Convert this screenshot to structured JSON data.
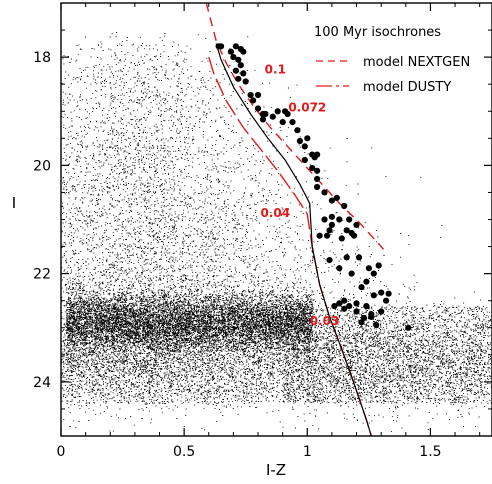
{
  "chart_data": {
    "type": "scatter",
    "xlabel": "I-Z",
    "ylabel": "I",
    "xlim": [
      0,
      1.75
    ],
    "ylim": [
      25.0,
      17.0
    ],
    "y_inverted": true,
    "x_ticks": [
      0,
      0.5,
      1,
      1.5
    ],
    "x_tick_labels": [
      "0",
      "0.5",
      "1",
      "1.5"
    ],
    "y_ticks": [
      18,
      20,
      22,
      24
    ],
    "y_tick_labels": [
      "18",
      "20",
      "22",
      "24"
    ],
    "legend": {
      "title": "100 Myr isochrones",
      "placement": "top-right",
      "entries": [
        {
          "label": "model NEXTGEN",
          "color": "#e31a1c",
          "style": "dashed"
        },
        {
          "label": "model DUSTY",
          "color": "#e31a1c",
          "style": "long-dash"
        }
      ]
    },
    "colors": {
      "isochrone": "#e31a1c",
      "mass_label": "#e31a1c",
      "points": "#000000",
      "field": "#000000"
    },
    "series": [
      {
        "name": "model NEXTGEN",
        "type": "line",
        "style": "dashed",
        "color": "#e31a1c",
        "x": [
          0.59,
          0.61,
          0.63,
          0.67,
          0.72,
          0.78,
          0.85,
          0.93,
          1.0,
          1.06,
          1.13,
          1.21,
          1.29,
          1.31
        ],
        "y": [
          17.0,
          17.35,
          17.7,
          18.1,
          18.5,
          18.9,
          19.3,
          19.7,
          20.05,
          20.35,
          20.7,
          21.05,
          21.45,
          21.55
        ]
      },
      {
        "name": "model DUSTY",
        "type": "line",
        "style": "long-dash",
        "color": "#e31a1c",
        "x": [
          0.6,
          0.62,
          0.67,
          0.74,
          0.81,
          0.88,
          0.95,
          1.0,
          1.02,
          1.05,
          1.09,
          1.14,
          1.18,
          1.21,
          1.24,
          1.26
        ],
        "y": [
          18.0,
          18.3,
          18.8,
          19.3,
          19.7,
          20.1,
          20.55,
          20.9,
          21.5,
          22.2,
          22.8,
          23.4,
          23.9,
          24.3,
          24.7,
          25.0
        ]
      },
      {
        "name": "",
        "type": "line",
        "style": "solid",
        "color": "#000000",
        "x": [
          0.63,
          0.65,
          0.7,
          0.77,
          0.84,
          0.91,
          0.97,
          1.01,
          1.02,
          1.05,
          1.09,
          1.14,
          1.18,
          1.21,
          1.24,
          1.26
        ],
        "y": [
          17.75,
          18.05,
          18.55,
          19.05,
          19.5,
          19.9,
          20.35,
          20.7,
          21.5,
          22.2,
          22.8,
          23.4,
          23.9,
          24.3,
          24.7,
          25.0
        ]
      },
      {
        "name": "",
        "type": "scatter",
        "marker": "filled-circle",
        "color": "#000000",
        "points": [
          [
            0.64,
            17.8
          ],
          [
            0.65,
            17.8
          ],
          [
            0.69,
            17.9
          ],
          [
            0.71,
            17.8
          ],
          [
            0.73,
            17.85
          ],
          [
            0.74,
            17.9
          ],
          [
            0.7,
            18.0
          ],
          [
            0.72,
            18.05
          ],
          [
            0.73,
            18.15
          ],
          [
            0.71,
            18.25
          ],
          [
            0.74,
            18.3
          ],
          [
            0.72,
            18.4
          ],
          [
            0.75,
            18.45
          ],
          [
            0.77,
            18.7
          ],
          [
            0.78,
            18.8
          ],
          [
            0.8,
            18.7
          ],
          [
            0.8,
            18.95
          ],
          [
            0.82,
            19.05
          ],
          [
            0.82,
            19.15
          ],
          [
            0.83,
            19.05
          ],
          [
            0.86,
            19.1
          ],
          [
            0.88,
            19.0
          ],
          [
            0.9,
            19.2
          ],
          [
            0.91,
            19.0
          ],
          [
            0.92,
            19.05
          ],
          [
            0.94,
            19.2
          ],
          [
            0.96,
            19.35
          ],
          [
            0.97,
            19.55
          ],
          [
            0.99,
            19.65
          ],
          [
            1.0,
            19.5
          ],
          [
            0.99,
            19.9
          ],
          [
            1.02,
            19.8
          ],
          [
            1.03,
            19.85
          ],
          [
            1.04,
            19.8
          ],
          [
            1.02,
            20.05
          ],
          [
            1.04,
            20.1
          ],
          [
            1.04,
            20.25
          ],
          [
            1.04,
            20.4
          ],
          [
            1.07,
            20.5
          ],
          [
            1.1,
            20.65
          ],
          [
            1.12,
            20.6
          ],
          [
            1.15,
            20.75
          ],
          [
            1.1,
            20.95
          ],
          [
            1.13,
            21.0
          ],
          [
            1.17,
            21.0
          ],
          [
            1.07,
            21.0
          ],
          [
            1.1,
            21.1
          ],
          [
            1.09,
            21.2
          ],
          [
            1.05,
            21.3
          ],
          [
            1.08,
            21.3
          ],
          [
            1.18,
            21.25
          ],
          [
            1.19,
            21.3
          ],
          [
            1.2,
            21.1
          ],
          [
            1.16,
            21.2
          ],
          [
            1.14,
            21.35
          ],
          [
            1.09,
            21.75
          ],
          [
            1.13,
            21.9
          ],
          [
            1.16,
            21.7
          ],
          [
            1.21,
            21.7
          ],
          [
            1.25,
            21.9
          ],
          [
            1.29,
            21.85
          ],
          [
            1.27,
            22.0
          ],
          [
            1.18,
            22.0
          ],
          [
            1.24,
            22.15
          ],
          [
            1.22,
            22.25
          ],
          [
            1.15,
            22.5
          ],
          [
            1.2,
            22.55
          ],
          [
            1.27,
            22.4
          ],
          [
            1.3,
            22.35
          ],
          [
            1.32,
            22.5
          ],
          [
            1.11,
            22.6
          ],
          [
            1.15,
            22.65
          ],
          [
            1.24,
            22.6
          ],
          [
            1.26,
            22.75
          ],
          [
            1.3,
            22.7
          ],
          [
            1.13,
            22.55
          ],
          [
            1.2,
            22.7
          ],
          [
            1.26,
            22.8
          ],
          [
            1.28,
            22.95
          ],
          [
            1.41,
            23.0
          ],
          [
            1.22,
            22.9
          ],
          [
            1.23,
            22.82
          ],
          [
            1.33,
            22.37
          ],
          [
            1.17,
            22.6
          ]
        ]
      },
      {
        "name": "",
        "type": "scatter",
        "marker": "dot",
        "color": "#000000",
        "description_free": true
      }
    ],
    "annotations": [
      {
        "text": "0.1",
        "x": 0.87,
        "y": 18.3,
        "color": "#e31a1c"
      },
      {
        "text": "0.072",
        "x": 1.0,
        "y": 19.0,
        "color": "#e31a1c"
      },
      {
        "text": "0.04",
        "x": 0.87,
        "y": 20.95,
        "color": "#e31a1c"
      },
      {
        "text": "0.03",
        "x": 1.07,
        "y": 22.95,
        "color": "#e31a1c"
      }
    ]
  }
}
